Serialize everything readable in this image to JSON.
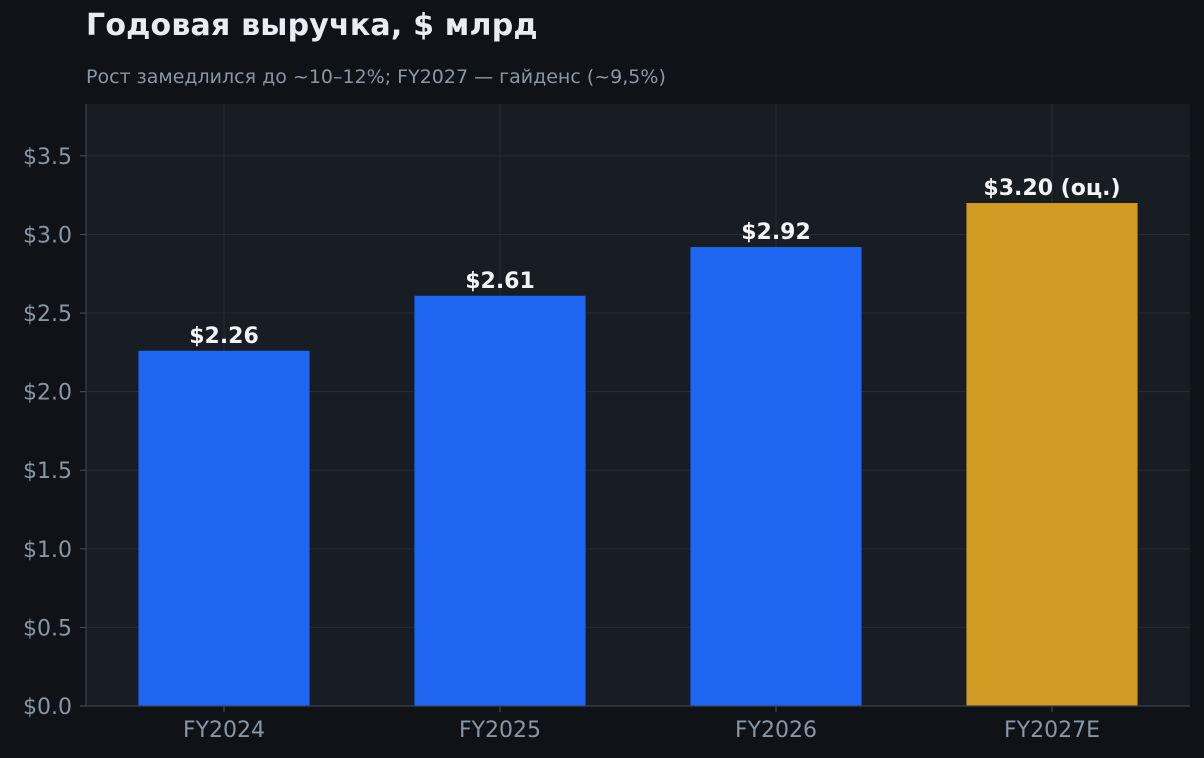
{
  "chart_data": {
    "type": "bar",
    "title": "Годовая выручка, $ млрд",
    "subtitle": "Рост замедлился до ~10–12%; FY2027 — гайденс (~9,5%)",
    "xlabel": "",
    "ylabel": "",
    "categories": [
      "FY2024",
      "FY2025",
      "FY2026",
      "FY2027E"
    ],
    "values": [
      2.26,
      2.61,
      2.92,
      3.2
    ],
    "data_labels": [
      "$2.26",
      "$2.61",
      "$2.92",
      "$3.20 (оц.)"
    ],
    "ylim": [
      0,
      3.83
    ],
    "yticks": [
      0,
      0.5,
      1.0,
      1.5,
      2.0,
      2.5,
      3.0,
      3.5
    ],
    "ytick_labels": [
      "$0.0",
      "$0.5",
      "$1.0",
      "$1.5",
      "$2.0",
      "$2.5",
      "$3.0",
      "$3.5"
    ],
    "grid": true,
    "legend": "none",
    "colors": {
      "actual": "#1f66f2",
      "estimate": "#d39a24",
      "plot_background": "#181c23",
      "page_background": "#0f1317",
      "grid": "#262b34",
      "tick_text": "#8a96a4",
      "label_text": "#f1f3f6"
    },
    "bar_colors": [
      "#1f66f2",
      "#1f66f2",
      "#1f66f2",
      "#d39a24"
    ]
  }
}
